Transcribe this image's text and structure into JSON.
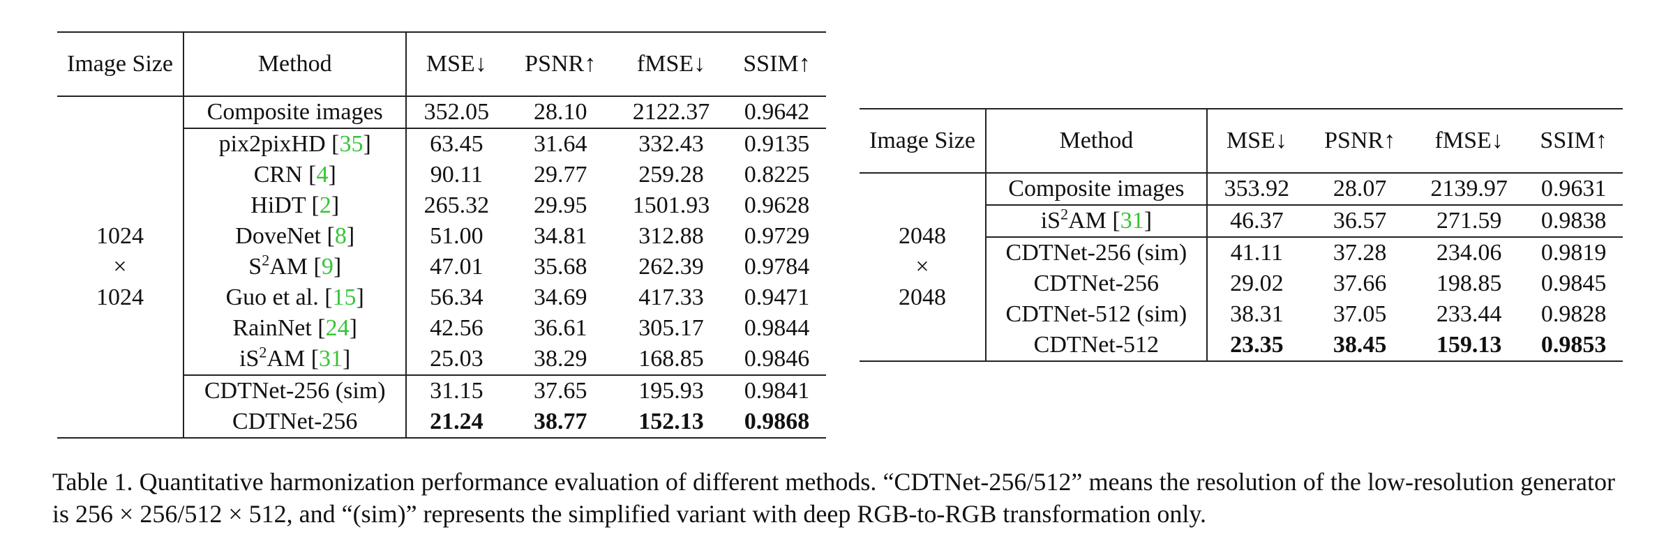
{
  "colors": {
    "citation": "#37c437",
    "rules": "#222222"
  },
  "headers": {
    "image_size": "Image Size",
    "method": "Method",
    "mse": "MSE↓",
    "psnr": "PSNR↑",
    "fmse": "fMSE↓",
    "ssim": "SSIM↑"
  },
  "table1": {
    "size_label": [
      "1024",
      "×",
      "1024"
    ],
    "composite": {
      "method": "Composite images",
      "mse": "352.05",
      "psnr": "28.10",
      "fmse": "2122.37",
      "ssim": "0.9642"
    },
    "rows": [
      {
        "name": "pix2pixHD",
        "cite": "35",
        "mse": "63.45",
        "psnr": "31.64",
        "fmse": "332.43",
        "ssim": "0.9135"
      },
      {
        "name": "CRN",
        "cite": "4",
        "mse": "90.11",
        "psnr": "29.77",
        "fmse": "259.28",
        "ssim": "0.8225"
      },
      {
        "name": "HiDT",
        "cite": "2",
        "mse": "265.32",
        "psnr": "29.95",
        "fmse": "1501.93",
        "ssim": "0.9628"
      },
      {
        "name": "DoveNet",
        "cite": "8",
        "mse": "51.00",
        "psnr": "34.81",
        "fmse": "312.88",
        "ssim": "0.9729"
      },
      {
        "name_pre": "S",
        "name_sup": "2",
        "name_post": "AM",
        "cite": "9",
        "mse": "47.01",
        "psnr": "35.68",
        "fmse": "262.39",
        "ssim": "0.9784"
      },
      {
        "name": "Guo et al.",
        "cite": "15",
        "mse": "56.34",
        "psnr": "34.69",
        "fmse": "417.33",
        "ssim": "0.9471"
      },
      {
        "name": "RainNet",
        "cite": "24",
        "mse": "42.56",
        "psnr": "36.61",
        "fmse": "305.17",
        "ssim": "0.9844"
      },
      {
        "name_pre": "iS",
        "name_sup": "2",
        "name_post": "AM",
        "cite": "31",
        "mse": "25.03",
        "psnr": "38.29",
        "fmse": "168.85",
        "ssim": "0.9846"
      }
    ],
    "ours": [
      {
        "name": "CDTNet-256 (sim)",
        "mse": "31.15",
        "psnr": "37.65",
        "fmse": "195.93",
        "ssim": "0.9841"
      },
      {
        "name": "CDTNet-256",
        "mse": "21.24",
        "psnr": "38.77",
        "fmse": "152.13",
        "ssim": "0.9868"
      }
    ]
  },
  "table2": {
    "size_label": [
      "2048",
      "×",
      "2048"
    ],
    "composite": {
      "method": "Composite images",
      "mse": "353.92",
      "psnr": "28.07",
      "fmse": "2139.97",
      "ssim": "0.9631"
    },
    "rows": [
      {
        "name_pre": "iS",
        "name_sup": "2",
        "name_post": "AM",
        "cite": "31",
        "mse": "46.37",
        "psnr": "36.57",
        "fmse": "271.59",
        "ssim": "0.9838"
      }
    ],
    "ours": [
      {
        "name": "CDTNet-256 (sim)",
        "mse": "41.11",
        "psnr": "37.28",
        "fmse": "234.06",
        "ssim": "0.9819"
      },
      {
        "name": "CDTNet-256",
        "mse": "29.02",
        "psnr": "37.66",
        "fmse": "198.85",
        "ssim": "0.9845"
      },
      {
        "name": "CDTNet-512 (sim)",
        "mse": "38.31",
        "psnr": "37.05",
        "fmse": "233.44",
        "ssim": "0.9828"
      },
      {
        "name": "CDTNet-512",
        "mse": "23.35",
        "psnr": "38.45",
        "fmse": "159.13",
        "ssim": "0.9853"
      }
    ]
  },
  "caption": "Table 1. Quantitative harmonization performance evaluation of different methods. “CDTNet-256/512” means the resolution of the low-resolution generator is 256 × 256/512 × 512, and “(sim)” represents the simplified variant with deep RGB-to-RGB transformation only."
}
